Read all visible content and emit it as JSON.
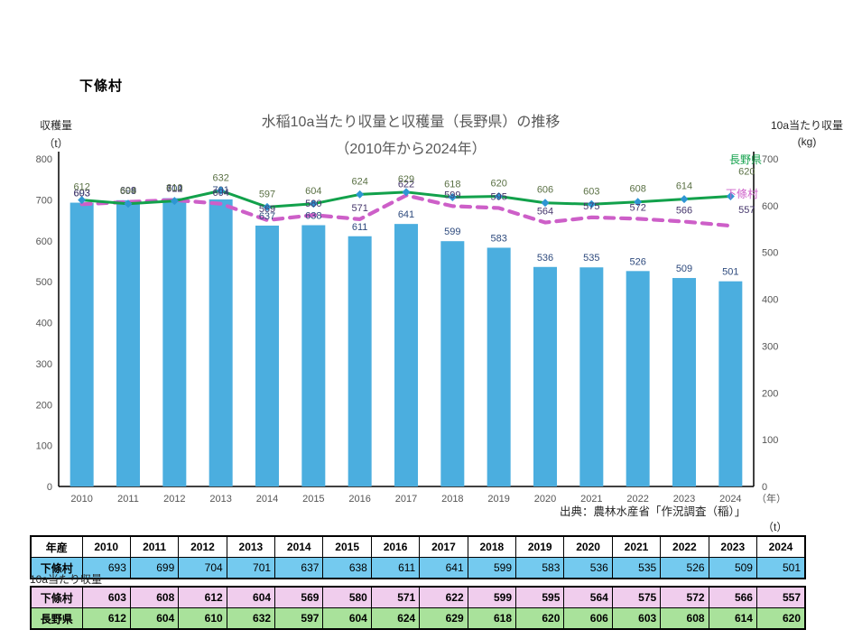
{
  "page": {
    "header": "下條村",
    "source": "出典：農林水産省「作況調査（稲）」",
    "table_unit_label": "（t）",
    "yield_section_label": "10a当たり収量"
  },
  "chart": {
    "title_line1": "水稲10a当たり収量と収穫量（長野県）の推移",
    "title_line2": "（2010年から2024年）",
    "left_axis_title": "収穫量",
    "left_axis_unit": "（t）",
    "right_axis_title": "10a当たり収量",
    "right_axis_unit": "(kg)",
    "x_axis_unit": "（年）"
  },
  "chart_data": {
    "type": "bar",
    "subtype": "bar+line combo, dual axis",
    "title": "水稲10a当たり収量と収穫量（長野県）の推移（2010年から2024年）",
    "categories": [
      "2010",
      "2011",
      "2012",
      "2013",
      "2014",
      "2015",
      "2016",
      "2017",
      "2018",
      "2019",
      "2020",
      "2021",
      "2022",
      "2023",
      "2024"
    ],
    "series": [
      {
        "name": "下條村 収穫量",
        "chart": "bar",
        "axis": "left",
        "unit": "t",
        "color": "#4BAEDF",
        "label_color": "#2e4a7d",
        "values": [
          693,
          699,
          704,
          701,
          637,
          638,
          611,
          641,
          599,
          583,
          536,
          535,
          526,
          509,
          501
        ]
      },
      {
        "name": "下條村 10a当たり収量",
        "chart": "line",
        "style": "dashed",
        "axis": "right",
        "unit": "kg",
        "color": "#CD5FC8",
        "label_color": "#45366b",
        "end_label": "下條村",
        "values": [
          603,
          608,
          612,
          604,
          569,
          580,
          571,
          622,
          599,
          595,
          564,
          575,
          572,
          566,
          557
        ]
      },
      {
        "name": "長野県 10a当たり収量",
        "chart": "line",
        "style": "solid",
        "axis": "right",
        "unit": "kg",
        "color": "#12A14B",
        "marker_color": "#2E96D3",
        "label_color": "#5b7145",
        "end_label": "長野県",
        "values": [
          612,
          604,
          610,
          632,
          597,
          604,
          624,
          629,
          618,
          620,
          606,
          603,
          608,
          614,
          620
        ]
      }
    ],
    "axes": {
      "left": {
        "title": "収穫量",
        "unit": "t",
        "min": 0,
        "max": 800,
        "step": 100
      },
      "right": {
        "title": "10a当たり収量",
        "unit": "kg",
        "min": 0,
        "max": 700,
        "step": 100
      }
    },
    "grid": false,
    "legend_position": "end-of-line labels (right side)"
  },
  "tables": {
    "harvest": {
      "header_label": "年産",
      "row_label": "下條村",
      "row_fill": "#74CAEF"
    },
    "yield": {
      "rows": [
        {
          "label": "下條村",
          "fill": "#F0CDED",
          "series_index": 1
        },
        {
          "label": "長野県",
          "fill": "#A9E29B",
          "series_index": 2
        }
      ]
    }
  }
}
